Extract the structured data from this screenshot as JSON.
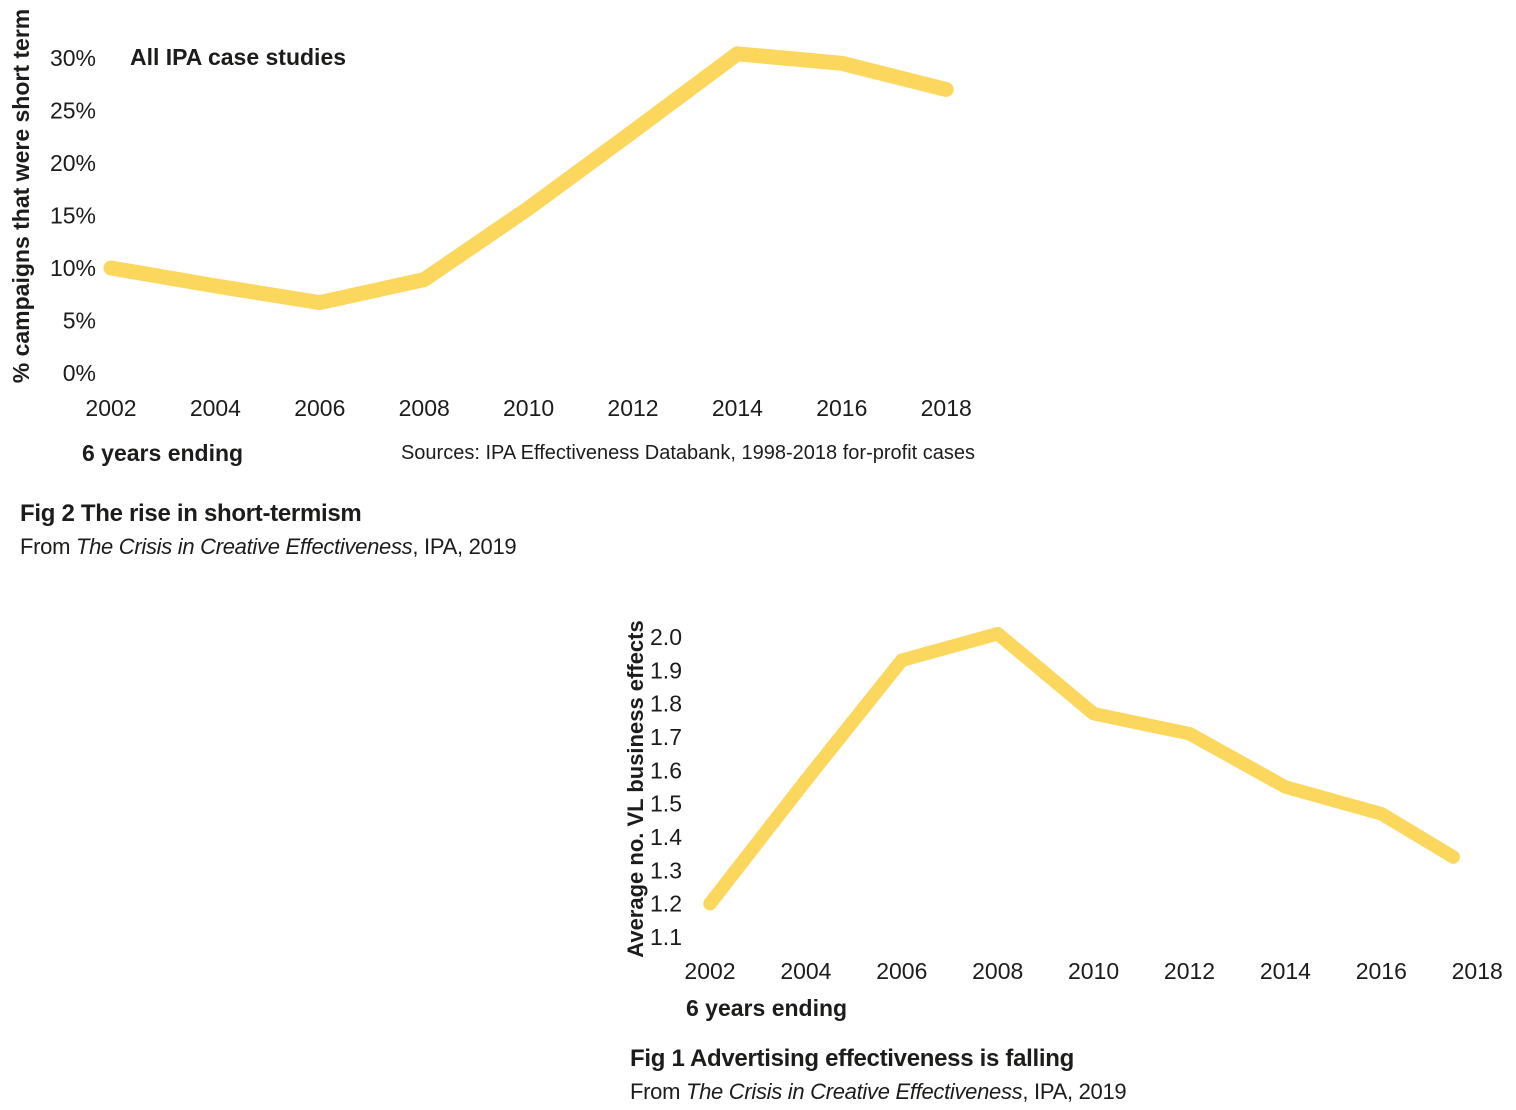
{
  "page": {
    "background": "#ffffff",
    "text_color": "#1c1c1b",
    "accent_yellow": "#fbd75e"
  },
  "chart_data": [
    {
      "id": "fig2",
      "type": "line",
      "title": "All IPA case studies",
      "ylabel": "% campaigns that were short term",
      "xlabel": "6 years ending",
      "source": "Sources: IPA Effectiveness Databank, 1998-2018 for-profit cases",
      "x": [
        2002,
        2004,
        2006,
        2008,
        2010,
        2012,
        2014,
        2016,
        2018
      ],
      "x_tick_labels": [
        "2002",
        "2004",
        "2006",
        "2008",
        "2010",
        "2012",
        "2014",
        "2016",
        "2018"
      ],
      "values": [
        10,
        8.3,
        6.7,
        8.9,
        15.7,
        23,
        30.4,
        29.5,
        27
      ],
      "y_tick_values": [
        0,
        5,
        10,
        15,
        20,
        25,
        30
      ],
      "y_tick_labels": [
        "0%",
        "5%",
        "10%",
        "15%",
        "20%",
        "25%",
        "30%"
      ],
      "ylim": [
        0,
        30.5
      ],
      "xlim": [
        2002,
        2018
      ],
      "grid": false,
      "legend": "none",
      "line_color": "#fbd75e",
      "caption": {
        "title": "Fig 2 The rise in short-termism",
        "from_prefix": "From ",
        "work_title": "The Crisis in Creative Effectiveness",
        "from_suffix": ", IPA, 2019"
      }
    },
    {
      "id": "fig1",
      "type": "line",
      "title": "",
      "ylabel": "Average no. VL business effects",
      "xlabel": "6 years ending",
      "source": "",
      "x": [
        2002,
        2004,
        2006,
        2008,
        2010,
        2012,
        2014,
        2016,
        2018
      ],
      "x_tick_labels": [
        "2002",
        "2004",
        "2006",
        "2008",
        "2010",
        "2012",
        "2014",
        "2016",
        "2018"
      ],
      "values": [
        1.2,
        1.57,
        1.93,
        2.01,
        1.77,
        1.71,
        1.55,
        1.47,
        1.34
      ],
      "y_tick_values": [
        1.1,
        1.2,
        1.3,
        1.4,
        1.5,
        1.6,
        1.7,
        1.8,
        1.9,
        2.0
      ],
      "y_tick_labels": [
        "1.1",
        "1.2",
        "1.3",
        "1.4",
        "1.5",
        "1.6",
        "1.7",
        "1.8",
        "1.9",
        "2.0"
      ],
      "ylim": [
        1.1,
        2.05
      ],
      "xlim": [
        2002,
        2018
      ],
      "line_end_x": 2017.5,
      "grid": false,
      "legend": "none",
      "line_color": "#fbd75e",
      "caption": {
        "title": "Fig 1 Advertising effectiveness is falling",
        "from_prefix": "From ",
        "work_title": "The Crisis in Creative Effectiveness",
        "from_suffix": ", IPA, 2019"
      }
    }
  ]
}
